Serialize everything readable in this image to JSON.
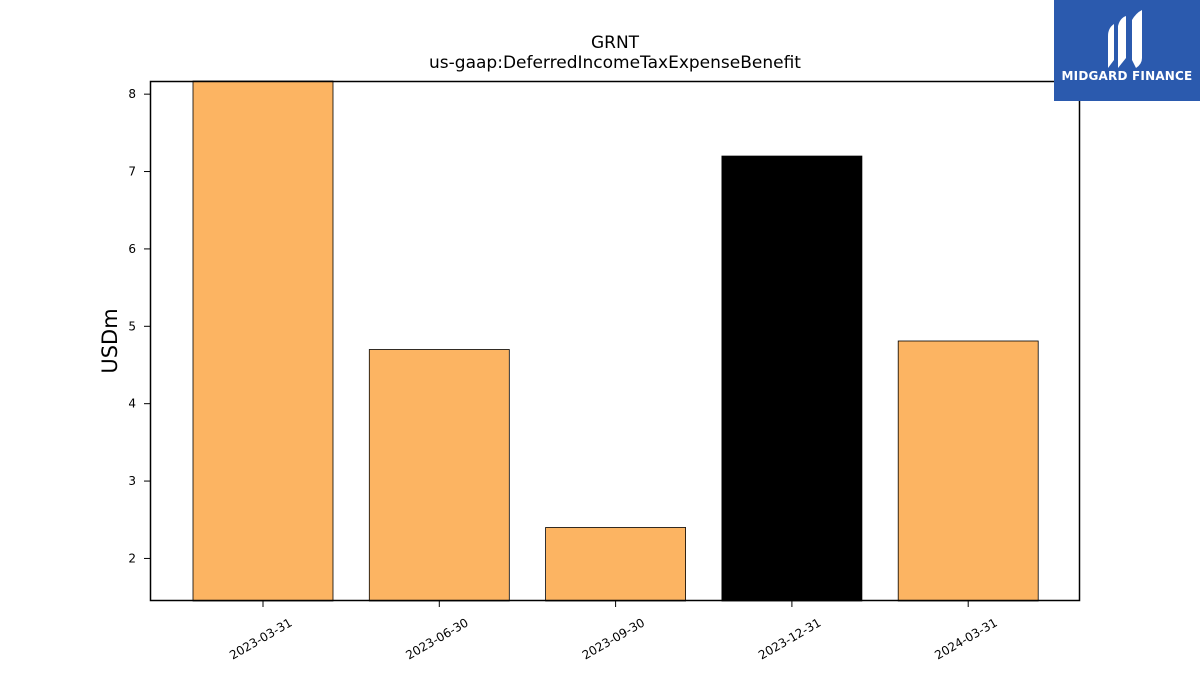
{
  "chart_data": {
    "type": "bar",
    "title": "GRNT",
    "subtitle": "us-gaap:DeferredIncomeTaxExpenseBenefit",
    "ylabel": "USDm",
    "xlabel": "",
    "categories": [
      "2023-03-31",
      "2023-06-30",
      "2023-09-30",
      "2023-12-31",
      "2024-03-31"
    ],
    "values": [
      8.2,
      4.7,
      2.4,
      7.2,
      4.81
    ],
    "bar_colors": [
      "#fcb462",
      "#fcb462",
      "#fcb462",
      "#000000",
      "#fcb462"
    ],
    "ylim": [
      1.45,
      8.17
    ],
    "yticks": [
      2,
      3,
      4,
      5,
      6,
      7,
      8
    ],
    "grid": false,
    "legend": "none"
  },
  "brand": {
    "name": "MIDGARD FINANCE",
    "logo_icon": "midgard-m-logo-icon",
    "color": "#2b5aae"
  }
}
